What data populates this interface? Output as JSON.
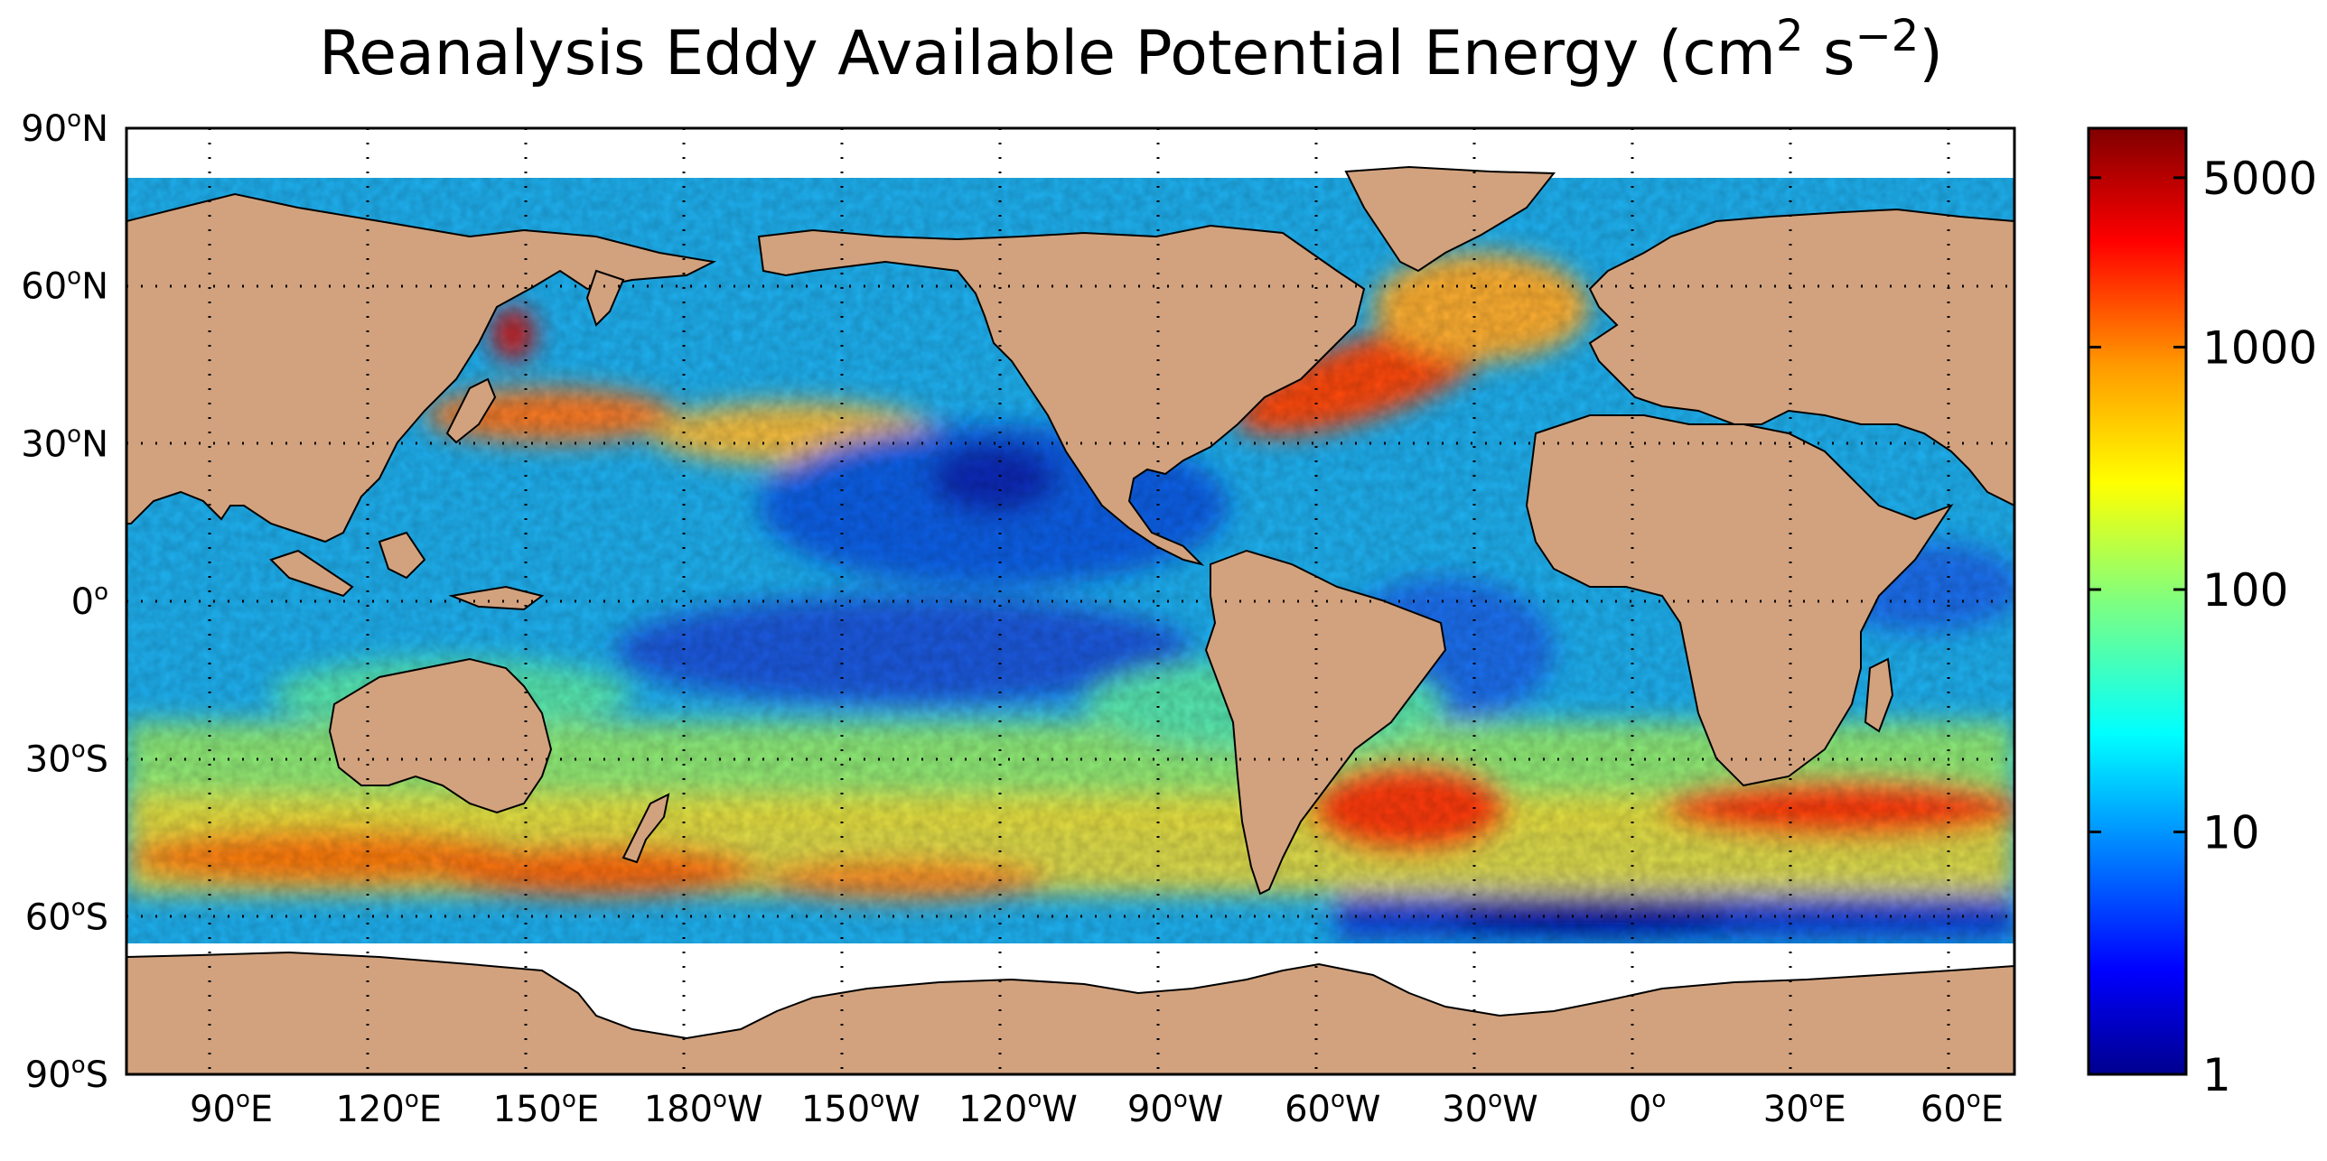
{
  "figure": {
    "title_main": "Reanalysis Eddy Available Potential Energy (cm",
    "title_sup1": "2",
    "title_mid": " s",
    "title_sup2": "−2",
    "title_end": ")"
  },
  "map": {
    "projection": "equirectangular",
    "lon_range": [
      70,
      430
    ],
    "lat_range": [
      -90,
      90
    ],
    "ice_edge_lat": -65,
    "gridlines": "dotted",
    "colors": {
      "land": "#d2a27e",
      "ice": "#ffffff",
      "coast": "#000000"
    },
    "lat_ticks": [
      {
        "lat": 90,
        "deg": "90",
        "sup": "o",
        "hem": "N"
      },
      {
        "lat": 60,
        "deg": "60",
        "sup": "o",
        "hem": "N"
      },
      {
        "lat": 30,
        "deg": "30",
        "sup": "o",
        "hem": "N"
      },
      {
        "lat": 0,
        "deg": "0",
        "sup": "o",
        "hem": ""
      },
      {
        "lat": -30,
        "deg": "30",
        "sup": "o",
        "hem": "S"
      },
      {
        "lat": -60,
        "deg": "60",
        "sup": "o",
        "hem": "S"
      },
      {
        "lat": -90,
        "deg": "90",
        "sup": "o",
        "hem": "S"
      }
    ],
    "lon_ticks": [
      {
        "lon": 90,
        "deg": "90",
        "sup": "o",
        "hem": "E"
      },
      {
        "lon": 120,
        "deg": "120",
        "sup": "o",
        "hem": "E"
      },
      {
        "lon": 150,
        "deg": "150",
        "sup": "o",
        "hem": "E"
      },
      {
        "lon": 180,
        "deg": "180",
        "sup": "o",
        "hem": "W"
      },
      {
        "lon": 210,
        "deg": "150",
        "sup": "o",
        "hem": "W"
      },
      {
        "lon": 240,
        "deg": "120",
        "sup": "o",
        "hem": "W"
      },
      {
        "lon": 270,
        "deg": "90",
        "sup": "o",
        "hem": "W"
      },
      {
        "lon": 300,
        "deg": "60",
        "sup": "o",
        "hem": "W"
      },
      {
        "lon": 330,
        "deg": "30",
        "sup": "o",
        "hem": "W"
      },
      {
        "lon": 360,
        "deg": "0",
        "sup": "o",
        "hem": ""
      },
      {
        "lon": 390,
        "deg": "30",
        "sup": "o",
        "hem": "E"
      },
      {
        "lon": 420,
        "deg": "60",
        "sup": "o",
        "hem": "E"
      }
    ]
  },
  "colorbar": {
    "scale": "log",
    "range": [
      1,
      8000
    ],
    "colormap": "jet",
    "ticks": [
      {
        "value": 1,
        "label": "1"
      },
      {
        "value": 10,
        "label": "10"
      },
      {
        "value": 100,
        "label": "100"
      },
      {
        "value": 1000,
        "label": "1000"
      },
      {
        "value": 5000,
        "label": "5000"
      }
    ]
  }
}
